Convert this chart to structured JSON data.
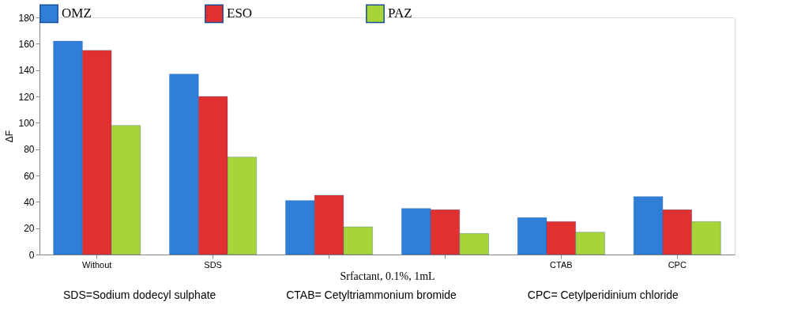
{
  "chart_data": {
    "type": "bar",
    "categories": [
      "Without",
      "SDS",
      null,
      null,
      "CTAB",
      "CPC"
    ],
    "series": [
      {
        "name": "OMZ",
        "color": "#2f7ed8",
        "values": [
          162,
          137,
          41,
          35,
          28,
          44
        ]
      },
      {
        "name": "ESO",
        "color": "#e03030",
        "values": [
          155,
          120,
          45,
          34,
          25,
          34
        ]
      },
      {
        "name": "PAZ",
        "color": "#a8d43a",
        "values": [
          98,
          74,
          21,
          16,
          17,
          25
        ]
      }
    ],
    "ylabel": "ΔF",
    "xlabel": "Srfactant, 0.1%, 1mL",
    "ylim": [
      0,
      180
    ],
    "yticks": [
      0,
      20,
      40,
      60,
      80,
      100,
      120,
      140,
      160,
      180
    ],
    "grid": false,
    "legend": "top",
    "annotations": [
      "SDS=Sodium dodecyl sulphate",
      "CTAB= Cetyltriammonium bromide",
      "CPC= Cetylperidinium chloride"
    ]
  }
}
